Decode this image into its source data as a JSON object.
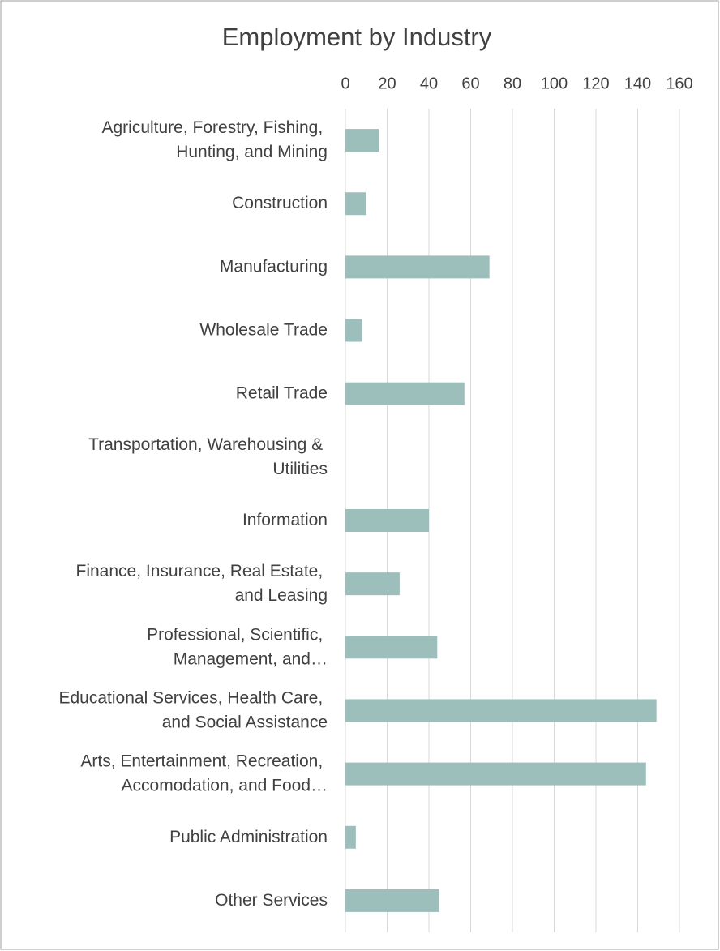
{
  "chart_data": {
    "type": "bar",
    "orientation": "horizontal",
    "title": "Employment by Industry",
    "categories": [
      "Agriculture, Forestry, Fishing, Hunting, and Mining",
      "Construction",
      "Manufacturing",
      "Wholesale Trade",
      "Retail Trade",
      "Transportation, Warehousing & Utilities",
      "Information",
      "Finance, Insurance, Real Estate, and Leasing",
      "Professional, Scientific, Management, and…",
      "Educational Services, Health Care, and Social Assistance",
      "Arts, Entertainment, Recreation, Accomodation, and Food…",
      "Public Administration",
      "Other Services"
    ],
    "values": [
      16,
      10,
      69,
      8,
      57,
      0,
      40,
      26,
      44,
      149,
      144,
      5,
      45
    ],
    "color": "#9dbfbc",
    "xlim": [
      0,
      160
    ],
    "xticks": [
      0,
      20,
      40,
      60,
      80,
      100,
      120,
      140,
      160
    ],
    "grid": true
  }
}
